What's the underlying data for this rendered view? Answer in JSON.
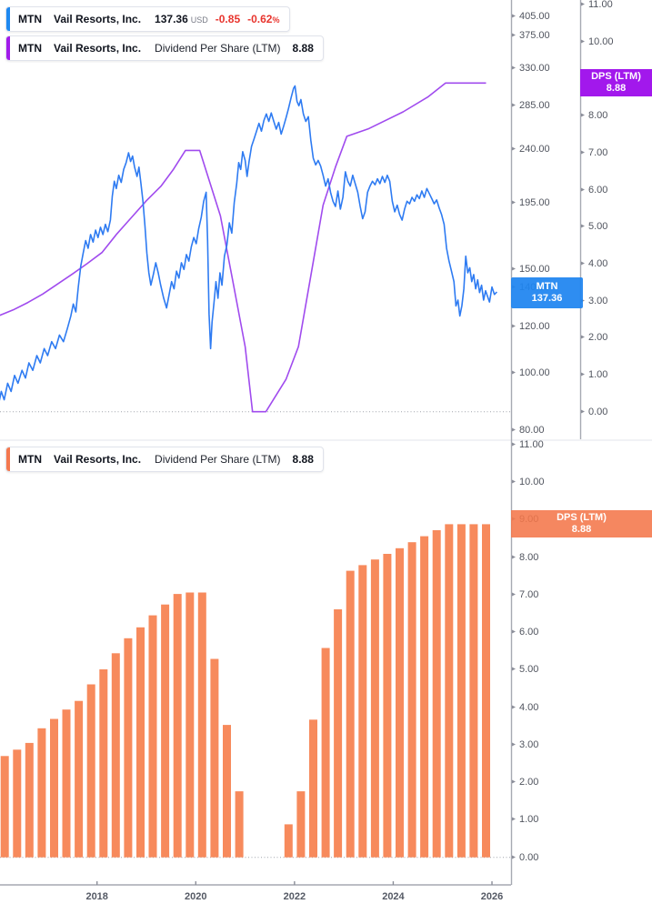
{
  "instrument": {
    "ticker": "MTN",
    "name": "Vail Resorts, Inc.",
    "price": "137.36",
    "currency": "USD",
    "change": "-0.85",
    "change_pct": "-0.62",
    "pct_symbol": "%",
    "metric_label": "Dividend Per Share (LTM)",
    "metric_value": "8.88"
  },
  "badges": {
    "price_badge": {
      "line1": "MTN",
      "line2": "137.36",
      "color": "#1E84F0"
    },
    "dps_badge_top": {
      "line1": "DPS (LTM)",
      "line2": "8.88",
      "color": "#A218EC"
    },
    "dps_badge_bottom": {
      "line1": "DPS (LTM)",
      "line2": "8.88",
      "color": "#F57A4D"
    }
  },
  "colors": {
    "price_line": "#2E7BF2",
    "dps_line": "#A04BEE",
    "bars": "#F78A5C",
    "accent_blue": "#1E88F0",
    "accent_purple": "#A11BEA",
    "accent_orange": "#F4784E",
    "negative_red": "#E8342D",
    "axis_line": "#A6A9B2",
    "axis_text": "#50545E"
  },
  "chart_data": [
    {
      "panel": "price",
      "type": "line",
      "title": "MTN Vail Resorts, Inc. price with Dividend Per Share (LTM) overlay",
      "x_axis": {
        "labels": [
          2018,
          2020,
          2022,
          2024,
          2026
        ]
      },
      "price_axis": {
        "type": "log",
        "ticks": [
          405,
          375,
          330,
          285,
          240,
          195,
          150,
          140,
          120,
          100,
          80
        ],
        "range": [
          77,
          432
        ]
      },
      "dps_axis": {
        "type": "linear",
        "ticks": [
          11,
          10,
          9,
          8,
          7,
          6,
          5,
          4,
          3,
          2,
          1,
          0
        ],
        "range": [
          -0.74,
          11.12
        ]
      },
      "series": [
        {
          "name": "MTN price (USD)",
          "axis": "price",
          "points": [
            [
              2016.0,
              88
            ],
            [
              2016.06,
              93
            ],
            [
              2016.12,
              90
            ],
            [
              2016.19,
              96
            ],
            [
              2016.26,
              93
            ],
            [
              2016.33,
              99
            ],
            [
              2016.4,
              96
            ],
            [
              2016.48,
              101
            ],
            [
              2016.55,
              98
            ],
            [
              2016.62,
              104
            ],
            [
              2016.7,
              101
            ],
            [
              2016.78,
              107
            ],
            [
              2016.85,
              104
            ],
            [
              2016.93,
              110
            ],
            [
              2017.0,
              107
            ],
            [
              2017.08,
              113
            ],
            [
              2017.16,
              110
            ],
            [
              2017.24,
              116
            ],
            [
              2017.32,
              113
            ],
            [
              2017.4,
              119
            ],
            [
              2017.47,
              125
            ],
            [
              2017.52,
              131
            ],
            [
              2017.57,
              127
            ],
            [
              2017.62,
              140
            ],
            [
              2017.67,
              152
            ],
            [
              2017.72,
              160
            ],
            [
              2017.77,
              168
            ],
            [
              2017.82,
              163
            ],
            [
              2017.87,
              172
            ],
            [
              2017.92,
              167
            ],
            [
              2017.97,
              175
            ],
            [
              2018.02,
              170
            ],
            [
              2018.07,
              177
            ],
            [
              2018.12,
              172
            ],
            [
              2018.17,
              179
            ],
            [
              2018.22,
              174
            ],
            [
              2018.27,
              182
            ],
            [
              2018.31,
              200
            ],
            [
              2018.35,
              212
            ],
            [
              2018.39,
              206
            ],
            [
              2018.44,
              217
            ],
            [
              2018.49,
              211
            ],
            [
              2018.54,
              222
            ],
            [
              2018.59,
              228
            ],
            [
              2018.64,
              237
            ],
            [
              2018.68,
              229
            ],
            [
              2018.72,
              234
            ],
            [
              2018.76,
              224
            ],
            [
              2018.81,
              216
            ],
            [
              2018.85,
              224
            ],
            [
              2018.89,
              210
            ],
            [
              2018.93,
              196
            ],
            [
              2018.97,
              178
            ],
            [
              2019.01,
              160
            ],
            [
              2019.05,
              148
            ],
            [
              2019.09,
              141
            ],
            [
              2019.14,
              147
            ],
            [
              2019.19,
              154
            ],
            [
              2019.24,
              148
            ],
            [
              2019.29,
              141
            ],
            [
              2019.35,
              134
            ],
            [
              2019.41,
              129
            ],
            [
              2019.46,
              136
            ],
            [
              2019.51,
              143
            ],
            [
              2019.56,
              139
            ],
            [
              2019.61,
              149
            ],
            [
              2019.66,
              145
            ],
            [
              2019.71,
              154
            ],
            [
              2019.76,
              150
            ],
            [
              2019.81,
              159
            ],
            [
              2019.86,
              155
            ],
            [
              2019.91,
              164
            ],
            [
              2019.96,
              170
            ],
            [
              2020.01,
              166
            ],
            [
              2020.06,
              176
            ],
            [
              2020.11,
              184
            ],
            [
              2020.16,
              196
            ],
            [
              2020.21,
              203
            ],
            [
              2020.24,
              168
            ],
            [
              2020.27,
              126
            ],
            [
              2020.3,
              110
            ],
            [
              2020.33,
              122
            ],
            [
              2020.37,
              132
            ],
            [
              2020.41,
              143
            ],
            [
              2020.45,
              134
            ],
            [
              2020.49,
              148
            ],
            [
              2020.53,
              141
            ],
            [
              2020.58,
              158
            ],
            [
              2020.63,
              165
            ],
            [
              2020.68,
              180
            ],
            [
              2020.73,
              173
            ],
            [
              2020.78,
              195
            ],
            [
              2020.83,
              210
            ],
            [
              2020.87,
              228
            ],
            [
              2020.91,
              222
            ],
            [
              2020.95,
              238
            ],
            [
              2021.0,
              230
            ],
            [
              2021.04,
              216
            ],
            [
              2021.08,
              229
            ],
            [
              2021.13,
              243
            ],
            [
              2021.18,
              250
            ],
            [
              2021.23,
              258
            ],
            [
              2021.28,
              266
            ],
            [
              2021.33,
              258
            ],
            [
              2021.38,
              269
            ],
            [
              2021.43,
              276
            ],
            [
              2021.48,
              268
            ],
            [
              2021.53,
              277
            ],
            [
              2021.58,
              268
            ],
            [
              2021.63,
              260
            ],
            [
              2021.68,
              267
            ],
            [
              2021.73,
              255
            ],
            [
              2021.78,
              263
            ],
            [
              2021.83,
              272
            ],
            [
              2021.88,
              282
            ],
            [
              2021.93,
              294
            ],
            [
              2021.98,
              305
            ],
            [
              2022.01,
              308
            ],
            [
              2022.05,
              290
            ],
            [
              2022.09,
              285
            ],
            [
              2022.13,
              292
            ],
            [
              2022.18,
              276
            ],
            [
              2022.23,
              268
            ],
            [
              2022.28,
              273
            ],
            [
              2022.33,
              249
            ],
            [
              2022.38,
              232
            ],
            [
              2022.43,
              226
            ],
            [
              2022.48,
              230
            ],
            [
              2022.53,
              225
            ],
            [
              2022.58,
              217
            ],
            [
              2022.63,
              208
            ],
            [
              2022.68,
              214
            ],
            [
              2022.73,
              203
            ],
            [
              2022.78,
              196
            ],
            [
              2022.83,
              192
            ],
            [
              2022.88,
              204
            ],
            [
              2022.93,
              190
            ],
            [
              2022.98,
              199
            ],
            [
              2023.03,
              220
            ],
            [
              2023.08,
              212
            ],
            [
              2023.13,
              208
            ],
            [
              2023.18,
              217
            ],
            [
              2023.23,
              210
            ],
            [
              2023.28,
              203
            ],
            [
              2023.33,
              192
            ],
            [
              2023.38,
              183
            ],
            [
              2023.43,
              188
            ],
            [
              2023.48,
              203
            ],
            [
              2023.53,
              208
            ],
            [
              2023.58,
              212
            ],
            [
              2023.63,
              209
            ],
            [
              2023.68,
              214
            ],
            [
              2023.73,
              210
            ],
            [
              2023.78,
              216
            ],
            [
              2023.83,
              211
            ],
            [
              2023.88,
              217
            ],
            [
              2023.93,
              212
            ],
            [
              2023.98,
              196
            ],
            [
              2024.03,
              188
            ],
            [
              2024.08,
              193
            ],
            [
              2024.13,
              186
            ],
            [
              2024.18,
              182
            ],
            [
              2024.23,
              190
            ],
            [
              2024.28,
              196
            ],
            [
              2024.33,
              194
            ],
            [
              2024.38,
              199
            ],
            [
              2024.43,
              196
            ],
            [
              2024.48,
              201
            ],
            [
              2024.53,
              198
            ],
            [
              2024.58,
              204
            ],
            [
              2024.63,
              199
            ],
            [
              2024.68,
              206
            ],
            [
              2024.73,
              202
            ],
            [
              2024.78,
              198
            ],
            [
              2024.83,
              194
            ],
            [
              2024.88,
              197
            ],
            [
              2024.93,
              191
            ],
            [
              2024.98,
              186
            ],
            [
              2025.03,
              179
            ],
            [
              2025.08,
              163
            ],
            [
              2025.13,
              155
            ],
            [
              2025.18,
              149
            ],
            [
              2025.23,
              143
            ],
            [
              2025.27,
              130
            ],
            [
              2025.31,
              133
            ],
            [
              2025.35,
              125
            ],
            [
              2025.39,
              130
            ],
            [
              2025.43,
              139
            ],
            [
              2025.47,
              158
            ],
            [
              2025.51,
              148
            ],
            [
              2025.55,
              151
            ],
            [
              2025.59,
              143
            ],
            [
              2025.63,
              147
            ],
            [
              2025.67,
              139
            ],
            [
              2025.71,
              144
            ],
            [
              2025.75,
              137
            ],
            [
              2025.79,
              141
            ],
            [
              2025.83,
              133
            ],
            [
              2025.87,
              138
            ],
            [
              2025.91,
              135
            ],
            [
              2025.95,
              132
            ],
            [
              2026.0,
              140
            ],
            [
              2026.05,
              136
            ],
            [
              2026.1,
              137.36
            ]
          ]
        },
        {
          "name": "Dividend Per Share (LTM)",
          "axis": "dps",
          "points": [
            [
              2016.02,
              2.6
            ],
            [
              2016.3,
              2.75
            ],
            [
              2016.6,
              2.95
            ],
            [
              2016.9,
              3.18
            ],
            [
              2017.2,
              3.45
            ],
            [
              2017.5,
              3.72
            ],
            [
              2017.8,
              4.0
            ],
            [
              2018.1,
              4.3
            ],
            [
              2018.4,
              4.8
            ],
            [
              2018.7,
              5.25
            ],
            [
              2019.0,
              5.7
            ],
            [
              2019.3,
              6.1
            ],
            [
              2019.55,
              6.55
            ],
            [
              2019.79,
              7.06
            ],
            [
              2020.08,
              7.06
            ],
            [
              2020.5,
              5.29
            ],
            [
              2020.75,
              3.53
            ],
            [
              2021.0,
              1.76
            ],
            [
              2021.15,
              0.0
            ],
            [
              2021.42,
              0.0
            ],
            [
              2021.83,
              0.88
            ],
            [
              2022.08,
              1.76
            ],
            [
              2022.33,
              3.67
            ],
            [
              2022.58,
              5.58
            ],
            [
              2022.83,
              6.61
            ],
            [
              2023.06,
              7.44
            ],
            [
              2023.49,
              7.64
            ],
            [
              2024.2,
              8.1
            ],
            [
              2024.7,
              8.5
            ],
            [
              2025.06,
              8.88
            ],
            [
              2025.88,
              8.88
            ]
          ]
        }
      ]
    },
    {
      "panel": "dividend",
      "type": "bar",
      "title": "MTN Dividend Per Share (LTM)",
      "y_axis": {
        "type": "linear",
        "ticks": [
          11,
          10,
          9,
          8,
          7,
          6,
          5,
          4,
          3,
          2,
          1,
          0
        ],
        "range": [
          -0.73,
          11.07
        ]
      },
      "start_year": 2016.13,
      "interval_years": 0.25,
      "values": [
        2.7,
        2.87,
        3.05,
        3.44,
        3.69,
        3.94,
        4.17,
        4.61,
        5.01,
        5.44,
        5.84,
        6.13,
        6.45,
        6.74,
        7.02,
        7.06,
        7.06,
        5.29,
        3.53,
        1.76,
        0,
        0,
        0,
        0.88,
        1.76,
        3.67,
        5.58,
        6.61,
        7.64,
        7.79,
        7.94,
        8.09,
        8.24,
        8.4,
        8.56,
        8.72,
        8.88,
        8.88,
        8.88,
        8.88
      ]
    }
  ]
}
